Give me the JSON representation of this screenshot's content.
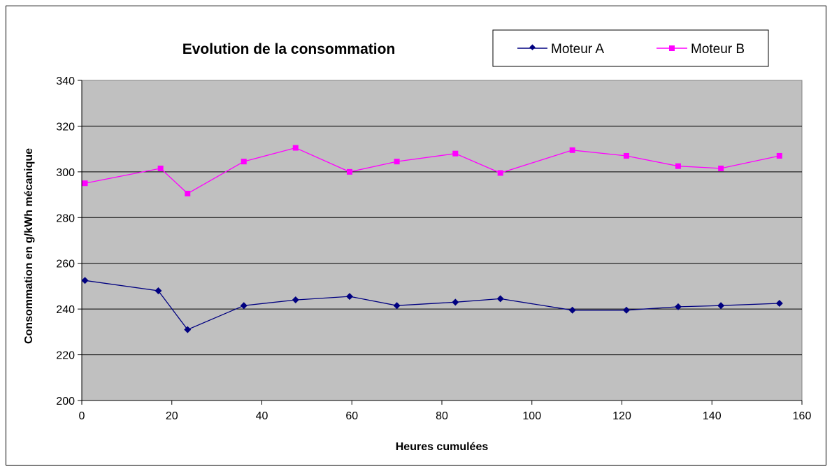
{
  "chart_data": {
    "type": "line",
    "title": "Evolution de la consommation",
    "xlabel": "Heures cumulées",
    "ylabel": "Consommation en g/kWh mécanique",
    "xlim": [
      0,
      160
    ],
    "ylim": [
      200,
      340
    ],
    "x_ticks": [
      "0",
      "20",
      "40",
      "60",
      "80",
      "100",
      "120",
      "140",
      "160"
    ],
    "y_ticks": [
      "200",
      "220",
      "240",
      "260",
      "280",
      "300",
      "320",
      "340"
    ],
    "grid": true,
    "legend_position": "top-right",
    "series": [
      {
        "name": "Moteur A",
        "color": "#000080",
        "marker": "diamond",
        "x": [
          0.7,
          17,
          23.5,
          36,
          47.5,
          59.5,
          70,
          83,
          93,
          109,
          121,
          132.5,
          142,
          155
        ],
        "y": [
          252.5,
          248,
          231,
          241.5,
          244,
          245.5,
          241.5,
          243,
          244.5,
          239.5,
          239.5,
          241,
          241.5,
          242.5
        ]
      },
      {
        "name": "Moteur B",
        "color": "#FF00FF",
        "marker": "square",
        "x": [
          0.7,
          17.5,
          23.5,
          36,
          47.5,
          59.5,
          70,
          83,
          93,
          109,
          121,
          132.5,
          142,
          155
        ],
        "y": [
          295,
          301.5,
          290.5,
          304.5,
          310.5,
          300,
          304.5,
          308,
          299.5,
          309.5,
          307,
          302.5,
          301.5,
          307
        ]
      }
    ]
  },
  "colors": {
    "plot_background": "#C0C0C0",
    "gridline": "#000000"
  }
}
